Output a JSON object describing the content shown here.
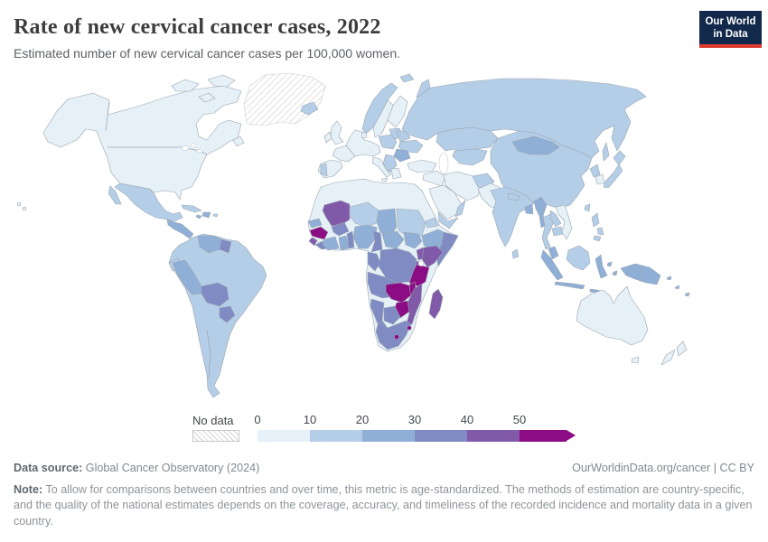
{
  "header": {
    "title": "Rate of new cervical cancer cases, 2022",
    "subtitle": "Estimated number of new cervical cancer cases per 100,000 women.",
    "logo": {
      "line1": "Our World",
      "line2": "in Data",
      "bg": "#12294b",
      "accent": "#dc3a2f"
    }
  },
  "legend": {
    "no_data_label": "No data",
    "tick_labels": [
      "0",
      "10",
      "20",
      "30",
      "40",
      "50"
    ]
  },
  "footer": {
    "source_label": "Data source:",
    "source_value": "Global Cancer Observatory (2024)",
    "attribution": "OurWorldinData.org/cancer | CC BY",
    "note_label": "Note:",
    "note_text": "To allow for comparisons between countries and over time, this metric is age-standardized. The methods of estimation are country-specific, and the quality of the national estimates depends on the coverage, accuracy, and timeliness of the recorded incidence and mortality data in a given country."
  },
  "chart_data": {
    "type": "choropleth",
    "title": "Rate of new cervical cancer cases, 2022",
    "subtitle": "Estimated number of new cervical cancer cases per 100,000 women.",
    "unit": "new cervical cancer cases per 100,000 women",
    "year": 2022,
    "legend_position": "bottom",
    "legend_bins": [
      {
        "label": "No data",
        "color": "hatch"
      },
      {
        "label": "0-10",
        "color": "#e6f0f7"
      },
      {
        "label": "10-20",
        "color": "#b5cee7"
      },
      {
        "label": "20-30",
        "color": "#8fafd6"
      },
      {
        "label": "30-40",
        "color": "#7f8bc2"
      },
      {
        "label": "40-50",
        "color": "#8159a9"
      },
      {
        "label": "50+",
        "color": "#8c0c84"
      }
    ],
    "regions": {
      "greenland": "No data",
      "canada-usa": "0-10",
      "arctic-islands-1": "0-10",
      "arctic-islands-2": "0-10",
      "arctic-islands-3": "0-10",
      "newfoundland": "0-10",
      "hawaii-1": "0-10",
      "hawaii-2": "0-10",
      "iceland": "10-20",
      "mexico": "10-20",
      "baja": "10-20",
      "central-america": "20-30",
      "cuba": "10-20",
      "hispaniola": "20-30",
      "jamaica": "20-30",
      "puerto-rico": "10-20",
      "south-america": "10-20",
      "venezuela": "20-30",
      "guyana": "30-40",
      "ecuador": "10-20",
      "peru": "20-30",
      "bolivia": "30-40",
      "paraguay": "30-40",
      "spain": "0-10",
      "portugal": "10-20",
      "france": "0-10",
      "uk": "0-10",
      "ireland": "0-10",
      "central-europe": "0-10",
      "denmark": "0-10",
      "italy": "0-10",
      "sicily": "0-10",
      "norway": "10-20",
      "sweden": "0-10",
      "finland": "0-10",
      "baltics": "10-20",
      "poland": "10-20",
      "belarus": "10-20",
      "ukraine": "10-20",
      "romania": "20-30",
      "balkans": "10-20",
      "greece": "0-10",
      "svalbard": "10-20",
      "novaya-zemlya": "10-20",
      "russia": "10-20",
      "sakhalin": "10-20",
      "kazakhstan": "10-20",
      "central-asia": "10-20",
      "china": "10-20",
      "mongolia": "20-30",
      "north-korea": "10-20",
      "south-korea": "0-10",
      "japan-hokkaido": "10-20",
      "japan-honshu": "10-20",
      "taiwan": "10-20",
      "turkey": "0-10",
      "levant-iraq": "0-10",
      "saudi-arabia": "0-10",
      "yemen": "10-20",
      "oman": "10-20",
      "iran": "0-10",
      "afghanistan": "10-20",
      "pakistan": "0-10",
      "india": "10-20",
      "nepal": "10-20",
      "bangladesh": "20-30",
      "sri-lanka": "10-20",
      "myanmar": "20-30",
      "thailand": "10-20",
      "laos": "10-20",
      "cambodia": "10-20",
      "vietnam": "0-10",
      "malaysia": "20-30",
      "sumatra": "20-30",
      "java": "20-30",
      "borneo": "10-20",
      "sulawesi": "20-30",
      "lesser-sunda": "20-30",
      "moluccas-1": "20-30",
      "moluccas-2": "20-30",
      "new-guinea": "20-30",
      "philippines-luzon": "10-20",
      "philippines-visayas": "10-20",
      "philippines-mindanao": "10-20",
      "north-africa": "0-10",
      "mali": "40-50",
      "senegal": "20-30",
      "guinea": "50+",
      "sierra-leone": "40-50",
      "liberia": "30-40",
      "cote-divoire": "20-30",
      "burkina-faso": "30-40",
      "ghana": "20-30",
      "togo-benin": "30-40",
      "niger": "10-20",
      "nigeria": "20-30",
      "chad": "20-30",
      "sudan": "10-20",
      "eritrea": "10-20",
      "ethiopia": "20-30",
      "somalia": "30-40",
      "cameroon": "30-40",
      "central-african-republic": "20-30",
      "south-sudan": "20-30",
      "uganda": "40-50",
      "kenya": "40-50",
      "rwanda-burundi": "40-50",
      "gabon-congo": "30-40",
      "drc": "30-40",
      "tanzania": "50+",
      "angola": "30-40",
      "zambia": "50+",
      "malawi": "50+",
      "mozambique": "40-50",
      "zimbabwe": "50+",
      "botswana": "30-40",
      "namibia": "30-40",
      "south-africa": "30-40",
      "lesotho": "50+",
      "eswatini": "50+",
      "madagascar": "40-50",
      "australia": "0-10",
      "tasmania": "0-10",
      "new-zealand-north": "0-10",
      "new-zealand-south": "0-10",
      "fiji": "20-30",
      "solomons": "20-30",
      "vanuatu": "20-30"
    }
  }
}
